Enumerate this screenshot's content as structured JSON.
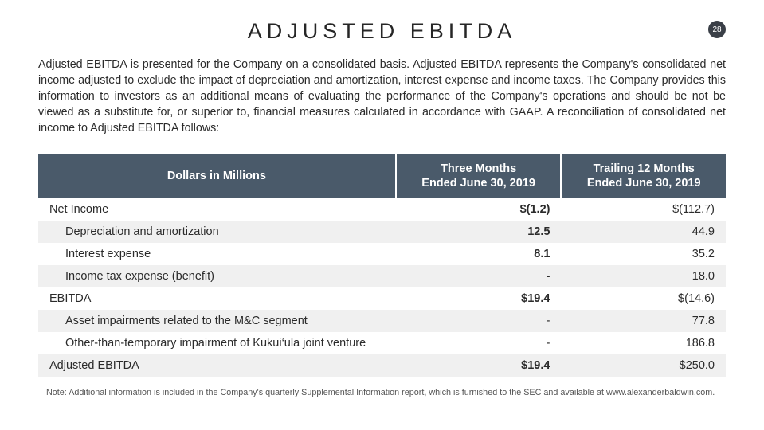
{
  "page_number": "28",
  "title": "ADJUSTED EBITDA",
  "intro": "Adjusted EBITDA is presented for the Company on a consolidated basis. Adjusted EBITDA represents the Company's consolidated net income adjusted to exclude the impact of depreciation and amortization, interest expense and income taxes. The Company provides this information to investors as an additional means of evaluating the performance of the Company's operations and should be not be viewed as a substitute for, or superior to, financial measures calculated in accordance with GAAP. A reconciliation of consolidated net income to Adjusted EBITDA follows:",
  "table": {
    "header": {
      "col0": "Dollars in Millions",
      "col1_line1": "Three Months",
      "col1_line2": "Ended June 30, 2019",
      "col2_line1": "Trailing 12 Months",
      "col2_line2": "Ended June 30, 2019"
    },
    "rows": [
      {
        "label": "Net Income",
        "v1": "$(1.2)",
        "v2": "$(112.7)",
        "indent": false,
        "bold1": true,
        "alt": false
      },
      {
        "label": "Depreciation and amortization",
        "v1": "12.5",
        "v2": "44.9",
        "indent": true,
        "bold1": true,
        "alt": true
      },
      {
        "label": "Interest expense",
        "v1": "8.1",
        "v2": "35.2",
        "indent": true,
        "bold1": true,
        "alt": false
      },
      {
        "label": "Income tax expense (benefit)",
        "v1": "-",
        "v2": "18.0",
        "indent": true,
        "bold1": true,
        "alt": true
      },
      {
        "label": "EBITDA",
        "v1": "$19.4",
        "v2": "$(14.6)",
        "indent": false,
        "bold1": true,
        "alt": false
      },
      {
        "label": "Asset impairments related to the M&C segment",
        "v1": "-",
        "v2": "77.8",
        "indent": true,
        "bold1": false,
        "alt": true
      },
      {
        "label": "Other-than-temporary impairment of Kukui‘ula joint venture",
        "v1": "-",
        "v2": "186.8",
        "indent": true,
        "bold1": false,
        "alt": false
      },
      {
        "label": "Adjusted EBITDA",
        "v1": "$19.4",
        "v2": "$250.0",
        "indent": false,
        "bold1": true,
        "alt": true
      }
    ]
  },
  "footnote": "Note: Additional information is included in the Company's quarterly Supplemental Information report, which is furnished to the SEC and available at www.alexanderbaldwin.com.",
  "colors": {
    "header_bg": "#4a5a6a",
    "header_fg": "#ffffff",
    "row_alt_bg": "#f0f0f0",
    "badge_bg": "#3a3f47",
    "text": "#2b2b2b"
  }
}
